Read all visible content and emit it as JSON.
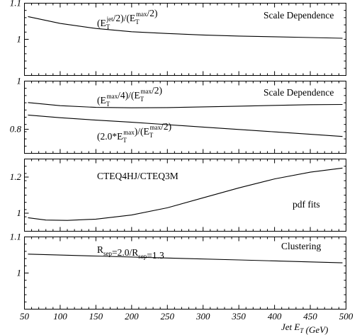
{
  "chart_data": [
    {
      "type": "line",
      "panel": "scale-jet",
      "xlim": [
        50,
        500
      ],
      "ylim": [
        0.9,
        1.1
      ],
      "yticks": [
        {
          "v": 1.1,
          "label": "1.1"
        },
        {
          "v": 1.0,
          "label": "1"
        }
      ],
      "annotations": [
        {
          "key": "a1",
          "text": "(E{T}^{jet}/2)/(E{T}^{max}/2)"
        },
        {
          "key": "a2",
          "text": "Scale Dependence"
        }
      ],
      "series": [
        {
          "x": [
            55,
            100,
            150,
            200,
            250,
            300,
            350,
            400,
            450,
            495
          ],
          "y": [
            1.063,
            1.044,
            1.03,
            1.021,
            1.016,
            1.012,
            1.009,
            1.007,
            1.005,
            1.003
          ]
        }
      ]
    },
    {
      "type": "line",
      "panel": "scale-max",
      "xlim": [
        50,
        500
      ],
      "ylim": [
        0.7,
        1.0
      ],
      "yticks": [
        {
          "v": 1.0,
          "label": "1"
        },
        {
          "v": 0.8,
          "label": "0.8"
        }
      ],
      "annotations": [
        {
          "key": "b1",
          "text": "Scale Dependence"
        },
        {
          "key": "b2",
          "text": "(E{T}^{max}/4)/(E{T}^{max}/2)"
        },
        {
          "key": "b3",
          "text": "(2.0*E{T}^{max})/(E{T}^{max}/2)"
        }
      ],
      "series": [
        {
          "x": [
            55,
            100,
            150,
            200,
            250,
            300,
            350,
            400,
            450,
            495
          ],
          "y": [
            0.911,
            0.898,
            0.891,
            0.889,
            0.89,
            0.893,
            0.896,
            0.899,
            0.902,
            0.903
          ]
        },
        {
          "x": [
            55,
            100,
            150,
            200,
            250,
            300,
            350,
            400,
            450,
            495
          ],
          "y": [
            0.859,
            0.848,
            0.838,
            0.829,
            0.819,
            0.809,
            0.799,
            0.789,
            0.779,
            0.77
          ]
        }
      ]
    },
    {
      "type": "line",
      "panel": "pdf",
      "xlim": [
        50,
        500
      ],
      "ylim": [
        0.9,
        1.3
      ],
      "yticks": [
        {
          "v": 1.2,
          "label": "1.2"
        },
        {
          "v": 1.0,
          "label": "1"
        }
      ],
      "annotations": [
        {
          "key": "c1",
          "text": "CTEQ4HJ/CTEQ3M"
        },
        {
          "key": "c2",
          "text": "pdf fits"
        }
      ],
      "series": [
        {
          "x": [
            55,
            80,
            110,
            150,
            200,
            250,
            300,
            350,
            400,
            450,
            495
          ],
          "y": [
            0.975,
            0.962,
            0.96,
            0.967,
            0.99,
            1.03,
            1.085,
            1.14,
            1.19,
            1.227,
            1.25
          ]
        }
      ]
    },
    {
      "type": "line",
      "panel": "clustering",
      "xlim": [
        50,
        500
      ],
      "ylim": [
        0.9,
        1.1
      ],
      "yticks": [
        {
          "v": 1.1,
          "label": "1.1"
        },
        {
          "v": 1.0,
          "label": "1"
        }
      ],
      "annotations": [
        {
          "key": "d1",
          "text": "R{sep}=2.0/R{sep}=1.3"
        },
        {
          "key": "d2",
          "text": "Clustering"
        }
      ],
      "series": [
        {
          "x": [
            55,
            150,
            250,
            350,
            450,
            495
          ],
          "y": [
            1.0523,
            1.0471,
            1.0416,
            1.0362,
            1.0307,
            1.0283
          ]
        }
      ]
    }
  ],
  "x_axis": {
    "ticks": [
      50,
      100,
      150,
      200,
      250,
      300,
      350,
      400,
      450,
      500
    ],
    "tick_labels": [
      "50",
      "100",
      "150",
      "200",
      "250",
      "300",
      "350",
      "400",
      "450",
      "500"
    ],
    "title": "Jet E{T} (GeV)"
  }
}
